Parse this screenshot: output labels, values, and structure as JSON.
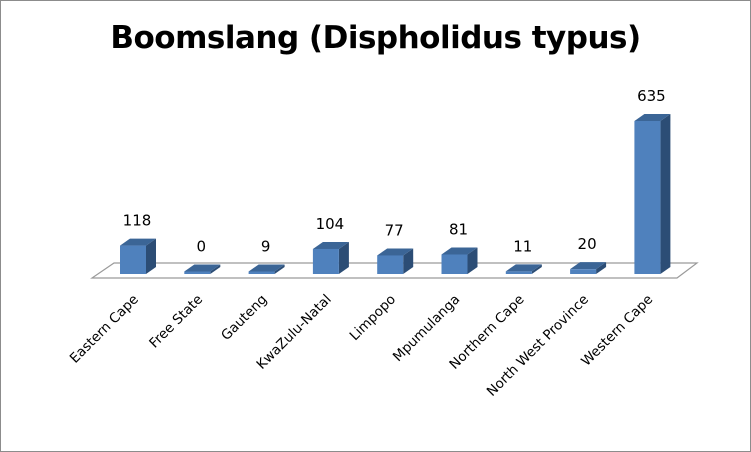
{
  "chart_data": {
    "type": "bar",
    "title": "Boomslang (Dispholidus typus)",
    "categories": [
      "Eastern Cape",
      "Free State",
      "Gauteng",
      "KwaZulu-Natal",
      "Limpopo",
      "Mpumulanga",
      "Northern Cape",
      "North West Province",
      "Western Cape"
    ],
    "values": [
      118,
      0,
      9,
      104,
      77,
      81,
      11,
      20,
      635
    ],
    "data_labels": [
      "118",
      "0",
      "9",
      "104",
      "77",
      "81",
      "11",
      "20",
      "635"
    ],
    "ylim": [
      0,
      660
    ],
    "grid": false,
    "legend": "none",
    "style": "3d-column",
    "colors": {
      "bar_front": "#4f81bd",
      "bar_side": "#2c4d75",
      "bar_top": "#3b6596",
      "floor_stroke": "#9a9a9a"
    }
  }
}
